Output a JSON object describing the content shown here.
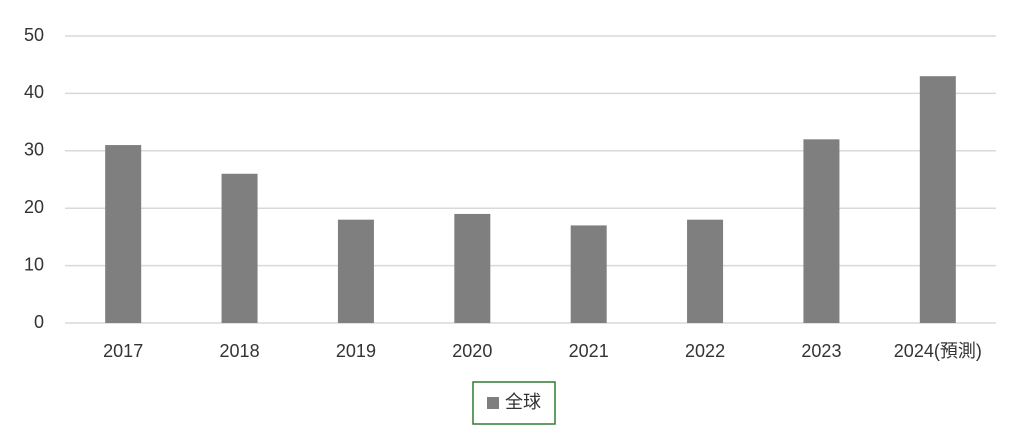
{
  "chart_data": {
    "type": "bar",
    "categories": [
      "2017",
      "2018",
      "2019",
      "2020",
      "2021",
      "2022",
      "2023",
      "2024(預測)"
    ],
    "series": [
      {
        "name": "全球",
        "color": "#7f7f7f",
        "values": [
          31,
          26,
          18,
          19,
          17,
          18,
          32,
          43
        ]
      }
    ],
    "ylim": [
      0,
      50
    ],
    "yticks": [
      0,
      10,
      20,
      30,
      40,
      50
    ],
    "grid": true,
    "legend": "bottom"
  }
}
